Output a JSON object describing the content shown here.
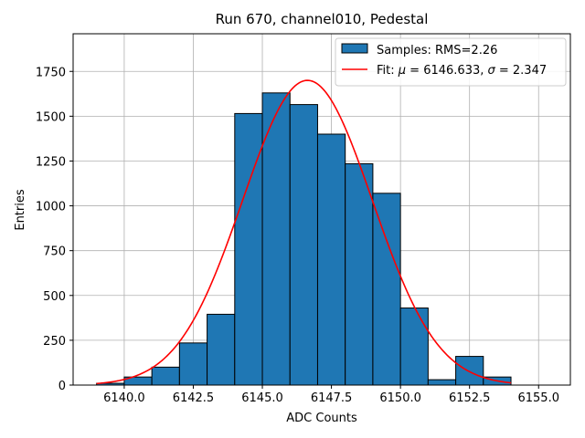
{
  "chart_data": {
    "type": "bar",
    "title": "Run 670, channel010, Pedestal",
    "xlabel": "ADC Counts",
    "ylabel": "Entries",
    "xlim": [
      6138.15,
      6156.15
    ],
    "ylim": [
      0,
      1960
    ],
    "grid": true,
    "legend_position": "top-right",
    "xticks": [
      6140.0,
      6142.5,
      6145.0,
      6147.5,
      6150.0,
      6152.5,
      6155.0
    ],
    "xtick_labels": [
      "6140.0",
      "6142.5",
      "6145.0",
      "6147.5",
      "6150.0",
      "6152.5",
      "6155.0"
    ],
    "yticks": [
      0,
      250,
      500,
      750,
      1000,
      1250,
      1500,
      1750
    ],
    "ytick_labels": [
      "0",
      "250",
      "500",
      "750",
      "1000",
      "1250",
      "1500",
      "1750"
    ],
    "histogram": {
      "name": "Samples: RMS=2.26",
      "color": "#1f77b4",
      "edge_color": "#000000",
      "bin_edges": [
        6139.0,
        6140.0,
        6141.0,
        6142.0,
        6143.0,
        6144.0,
        6145.0,
        6146.0,
        6147.0,
        6148.0,
        6149.0,
        6150.0,
        6151.0,
        6152.0,
        6153.0,
        6154.0
      ],
      "values": [
        10,
        45,
        100,
        235,
        395,
        1515,
        1630,
        1565,
        1400,
        1235,
        1070,
        430,
        30,
        160,
        45
      ]
    },
    "fit": {
      "name_prefix": "Fit: ",
      "mu_symbol": "μ",
      "mu_text": " = 6146.633, ",
      "sigma_symbol": "σ",
      "sigma_text": " = 2.347",
      "mu": 6146.633,
      "sigma": 2.347,
      "amplitude": 1700,
      "x_range": [
        6139.0,
        6154.0
      ],
      "color": "#ff0000"
    }
  }
}
